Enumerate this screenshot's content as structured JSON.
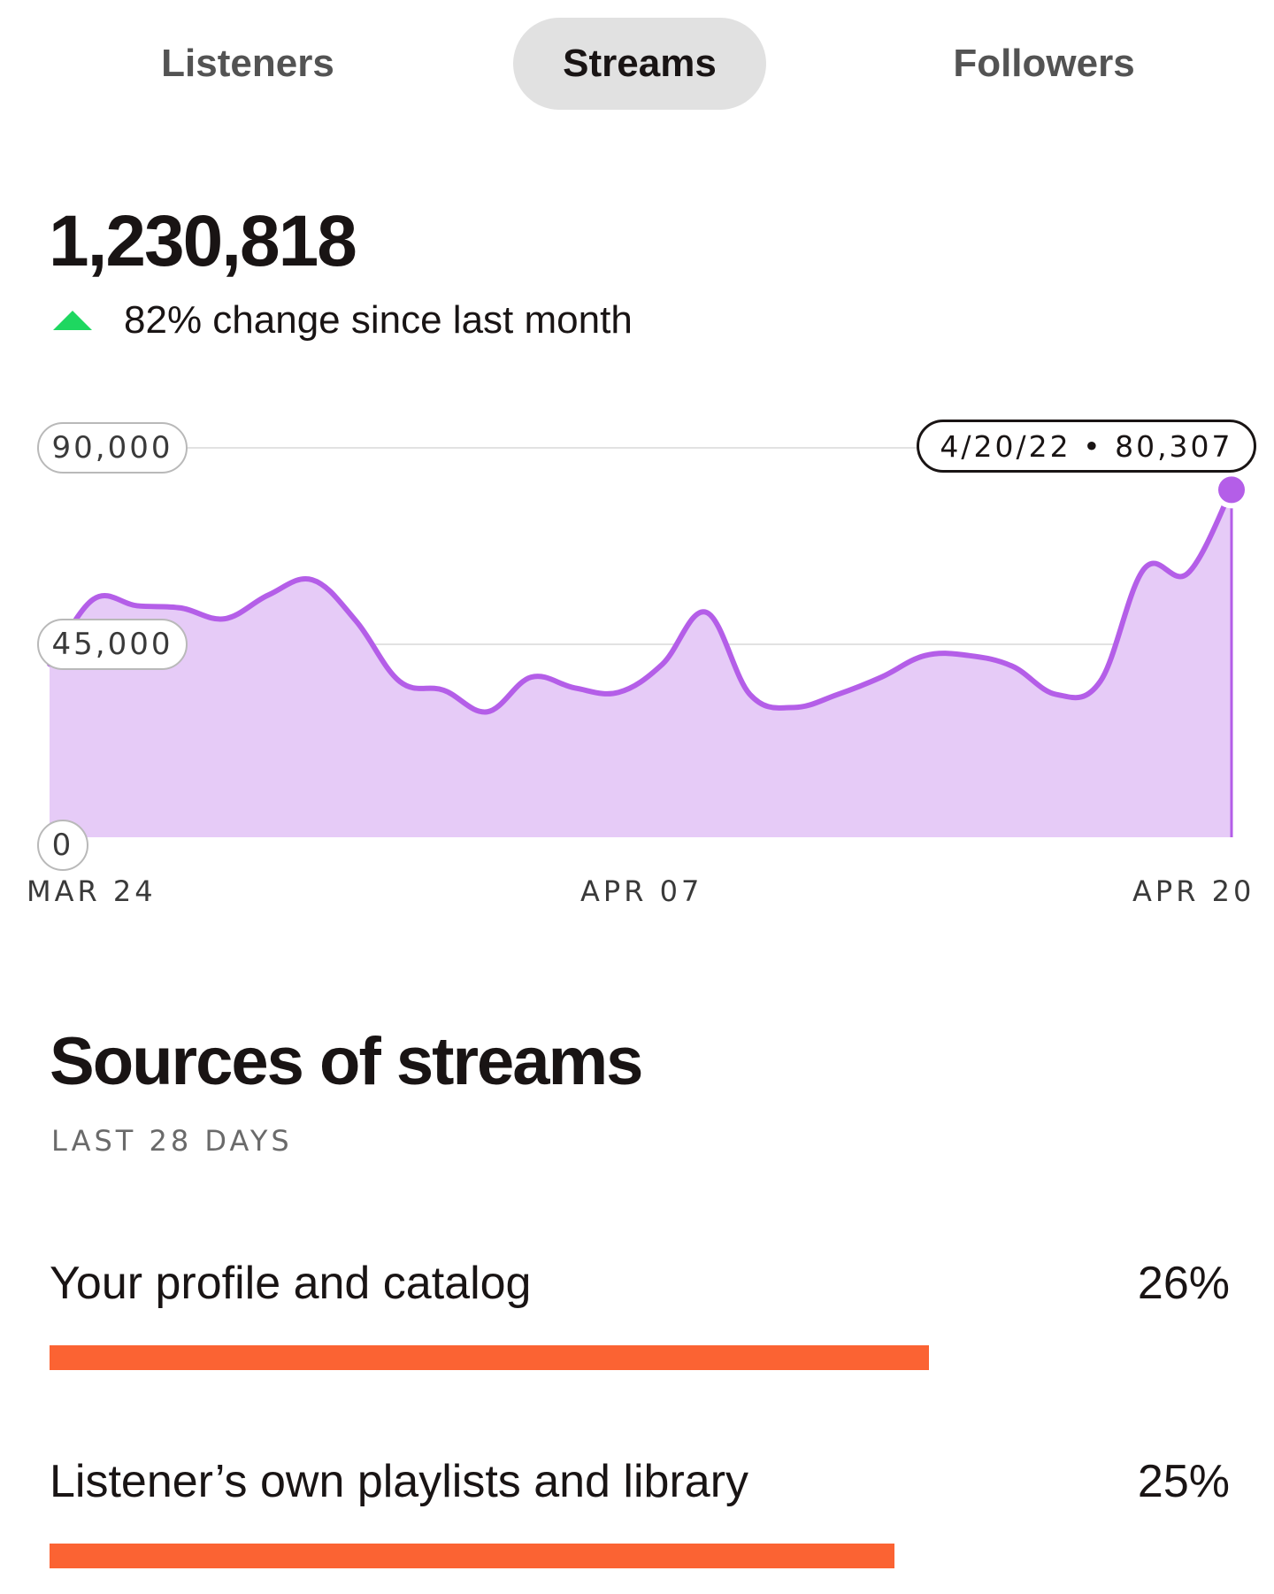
{
  "tabs": [
    {
      "label": "Listeners",
      "active": false
    },
    {
      "label": "Streams",
      "active": true
    },
    {
      "label": "Followers",
      "active": false
    }
  ],
  "stat": {
    "value": "1,230,818",
    "change": "82% change since last month",
    "change_direction": "up",
    "change_color": "#1ed760"
  },
  "chart_data": {
    "type": "area",
    "color": "#b45ee8",
    "fill": "#e6cbf7",
    "ylim": [
      0,
      90000
    ],
    "y_ticks": [
      "90,000",
      "45,000",
      "0"
    ],
    "x_ticks": [
      "MAR 24",
      "APR 07",
      "APR 20"
    ],
    "grid": true,
    "tooltip": "4/20/22 • 80,307",
    "series": [
      {
        "x": [
          "3/24/22",
          "3/25/22",
          "3/26/22",
          "3/27/22",
          "3/28/22",
          "3/29/22",
          "3/30/22",
          "3/31/22",
          "4/01/22",
          "4/02/22",
          "4/03/22",
          "4/04/22",
          "4/05/22",
          "4/06/22",
          "4/07/22",
          "4/08/22",
          "4/09/22",
          "4/10/22",
          "4/11/22",
          "4/12/22",
          "4/13/22",
          "4/14/22",
          "4/15/22",
          "4/16/22",
          "4/17/22",
          "4/18/22",
          "4/19/22",
          "4/20/22"
        ],
        "values": [
          40000,
          55000,
          53500,
          53000,
          50500,
          56000,
          59500,
          50000,
          36000,
          34000,
          29000,
          37000,
          34500,
          33500,
          40000,
          52000,
          33000,
          30000,
          33000,
          37000,
          42000,
          42000,
          39500,
          33000,
          36000,
          62000,
          61000,
          80307
        ]
      }
    ]
  },
  "sources": {
    "title": "Sources of streams",
    "subtitle": "LAST 28 DAYS",
    "items": [
      {
        "label": "Your profile and catalog",
        "percent": "26%",
        "bar_fraction": 0.745
      },
      {
        "label": "Listener’s own playlists and library",
        "percent": "25%",
        "bar_fraction": 0.716
      }
    ],
    "bar_color": "#fb6333"
  }
}
